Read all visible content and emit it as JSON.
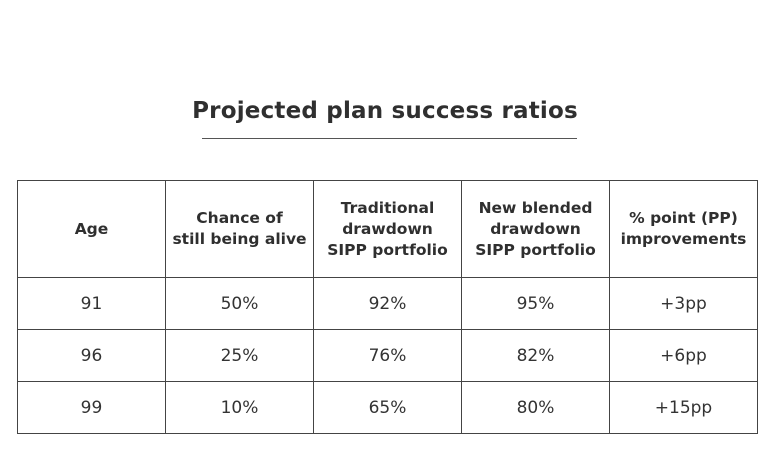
{
  "title": "Projected plan success ratios",
  "table": {
    "headers": [
      "Age",
      "Chance of\nstill being alive",
      "Traditional\ndrawdown\nSIPP portfolio",
      "New blended\ndrawdown\nSIPP portfolio",
      "% point (PP)\nimprovements"
    ],
    "rows": [
      [
        "91",
        "50%",
        "92%",
        "95%",
        "+3pp"
      ],
      [
        "96",
        "25%",
        "76%",
        "82%",
        "+6pp"
      ],
      [
        "99",
        "10%",
        "65%",
        "80%",
        "+15pp"
      ]
    ]
  }
}
